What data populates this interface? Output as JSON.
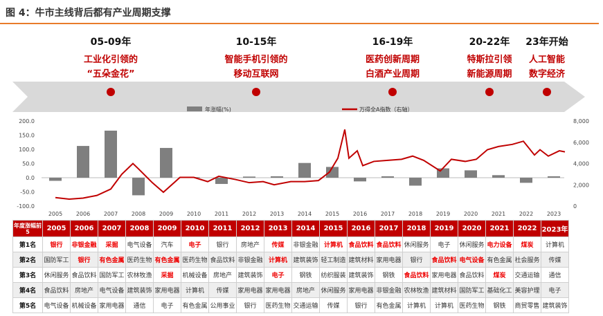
{
  "title": "图 4：牛市主线背后都有产业周期支撑",
  "timeline": [
    {
      "period": "05-09年",
      "desc": [
        "工业化引领的",
        "“五朵金花”"
      ]
    },
    {
      "period": "10-15年",
      "desc": [
        "智能手机引领的",
        "移动互联网"
      ]
    },
    {
      "period": "16-19年",
      "desc": [
        "医药创新周期",
        "白酒产业周期"
      ]
    },
    {
      "period": "20-22年",
      "desc": [
        "特斯拉引领",
        "新能源周期"
      ]
    },
    {
      "period": "23年开始",
      "desc": [
        "人工智能",
        "数字经济"
      ]
    }
  ],
  "colors": {
    "bar": "#7f7f7f",
    "line": "#c00000",
    "header": "#c00000",
    "highlight": "#e00000",
    "arrow": "#d9d9d9"
  },
  "chart_data": {
    "type": "bar+line",
    "legend": [
      "年涨幅(%)",
      "万得全A指数（右轴）"
    ],
    "legend_position": "top",
    "categories": [
      "2005",
      "2006",
      "2007",
      "2008",
      "2009",
      "2010",
      "2011",
      "2012",
      "2013",
      "2014",
      "2015",
      "2016",
      "2017",
      "2018",
      "2019",
      "2020",
      "2021",
      "2022",
      "2023"
    ],
    "series": [
      {
        "name": "年涨幅(%)",
        "type": "bar",
        "axis": "left",
        "values": [
          -11,
          112,
          166,
          -62,
          105,
          2,
          -22,
          4,
          5,
          52,
          38,
          -13,
          5,
          -28,
          33,
          26,
          9,
          -18,
          5
        ]
      },
      {
        "name": "万得全A指数（右轴）",
        "type": "line",
        "axis": "right",
        "x": [
          2005,
          2005.5,
          2006,
          2006.5,
          2007,
          2007.4,
          2007.8,
          2008,
          2008.5,
          2008.9,
          2009.5,
          2010,
          2010.5,
          2010.9,
          2011.5,
          2012,
          2012.5,
          2012.9,
          2013.5,
          2014,
          2014.5,
          2014.9,
          2015.2,
          2015.45,
          2015.6,
          2015.9,
          2016.1,
          2016.5,
          2017,
          2017.5,
          2017.9,
          2018.3,
          2018.9,
          2019.3,
          2019.8,
          2020.2,
          2020.6,
          2021,
          2021.5,
          2021.9,
          2022.3,
          2022.5,
          2022.8,
          2023.2,
          2023.4
        ],
        "values": [
          800,
          650,
          750,
          1000,
          1600,
          3000,
          4000,
          3500,
          2200,
          1300,
          2700,
          2700,
          2300,
          2800,
          2500,
          2200,
          2300,
          2000,
          2300,
          2300,
          2400,
          3200,
          4500,
          7200,
          4500,
          5200,
          3800,
          4200,
          4300,
          4400,
          4700,
          4300,
          3300,
          4400,
          4200,
          4400,
          5300,
          5600,
          5800,
          6100,
          4800,
          5300,
          4700,
          5200,
          5100
        ]
      }
    ],
    "ylim_left": [
      -100,
      200
    ],
    "yticks_left": [
      "200.0",
      "150.0",
      "100.0",
      "50.0",
      "0.0",
      "-50.0",
      "-100.0"
    ],
    "ylim_right": [
      0,
      8000
    ],
    "yticks_right": [
      "8,000",
      "6,000",
      "4,000",
      "2,000",
      "0"
    ],
    "grid": false
  },
  "table": {
    "corner": "年度涨幅前5",
    "years": [
      "2005",
      "2006",
      "2007",
      "2008",
      "2009",
      "2010",
      "2011",
      "2012",
      "2013",
      "2014",
      "2015",
      "2016",
      "2017",
      "2018",
      "2019",
      "2020",
      "2021",
      "2022",
      "2023年"
    ],
    "rows": [
      {
        "rank": "第1名",
        "cells": [
          [
            "银行",
            1
          ],
          [
            "非银金融",
            1
          ],
          [
            "采掘",
            1
          ],
          [
            "电气设备",
            0
          ],
          [
            "汽车",
            0
          ],
          [
            "电子",
            1
          ],
          [
            "银行",
            0
          ],
          [
            "房地产",
            0
          ],
          [
            "传媒",
            1
          ],
          [
            "非银金融",
            0
          ],
          [
            "计算机",
            1
          ],
          [
            "食品饮料",
            1
          ],
          [
            "食品饮料",
            1
          ],
          [
            "休闲服务",
            0
          ],
          [
            "电子",
            0
          ],
          [
            "休闲服务",
            0
          ],
          [
            "电力设备",
            1
          ],
          [
            "煤炭",
            1
          ],
          [
            "计算机",
            0
          ]
        ]
      },
      {
        "rank": "第2名",
        "cells": [
          [
            "国防军工",
            0
          ],
          [
            "银行",
            1
          ],
          [
            "有色金属",
            1
          ],
          [
            "医药生物",
            0
          ],
          [
            "有色金属",
            1
          ],
          [
            "医药生物",
            0
          ],
          [
            "食品饮料",
            0
          ],
          [
            "非银金融",
            0
          ],
          [
            "计算机",
            1
          ],
          [
            "建筑装饰",
            0
          ],
          [
            "轻工制造",
            0
          ],
          [
            "建筑材料",
            0
          ],
          [
            "家用电器",
            0
          ],
          [
            "银行",
            0
          ],
          [
            "食品饮料",
            1
          ],
          [
            "电气设备",
            1
          ],
          [
            "有色金属",
            0
          ],
          [
            "社会服务",
            0
          ],
          [
            "传媒",
            0
          ]
        ]
      },
      {
        "rank": "第3名",
        "cells": [
          [
            "休闲服务",
            0
          ],
          [
            "食品饮料",
            0
          ],
          [
            "国防军工",
            0
          ],
          [
            "农林牧渔",
            0
          ],
          [
            "采掘",
            1
          ],
          [
            "机械设备",
            0
          ],
          [
            "房地产",
            0
          ],
          [
            "建筑装饰",
            0
          ],
          [
            "电子",
            1
          ],
          [
            "钢铁",
            0
          ],
          [
            "纺织服装",
            0
          ],
          [
            "建筑装饰",
            0
          ],
          [
            "钢铁",
            0
          ],
          [
            "食品饮料",
            1
          ],
          [
            "家用电器",
            0
          ],
          [
            "食品饮料",
            0
          ],
          [
            "煤炭",
            1
          ],
          [
            "交通运输",
            0
          ],
          [
            "通信",
            0
          ]
        ]
      },
      {
        "rank": "第4名",
        "cells": [
          [
            "食品饮料",
            0
          ],
          [
            "房地产",
            0
          ],
          [
            "电气设备",
            0
          ],
          [
            "建筑装饰",
            0
          ],
          [
            "家用电器",
            0
          ],
          [
            "计算机",
            0
          ],
          [
            "传媒",
            0
          ],
          [
            "家用电器",
            0
          ],
          [
            "家用电器",
            0
          ],
          [
            "房地产",
            0
          ],
          [
            "休闲服务",
            0
          ],
          [
            "家用电器",
            0
          ],
          [
            "非银金融",
            0
          ],
          [
            "农林牧渔",
            0
          ],
          [
            "建筑材料",
            0
          ],
          [
            "国防军工",
            0
          ],
          [
            "基础化工",
            0
          ],
          [
            "美容护理",
            0
          ],
          [
            "电子",
            0
          ]
        ]
      },
      {
        "rank": "第5名",
        "cells": [
          [
            "电气设备",
            0
          ],
          [
            "机械设备",
            0
          ],
          [
            "家用电器",
            0
          ],
          [
            "通信",
            0
          ],
          [
            "电子",
            0
          ],
          [
            "有色金属",
            0
          ],
          [
            "公用事业",
            0
          ],
          [
            "银行",
            0
          ],
          [
            "医药生物",
            0
          ],
          [
            "交通运输",
            0
          ],
          [
            "传媒",
            0
          ],
          [
            "银行",
            0
          ],
          [
            "有色金属",
            0
          ],
          [
            "计算机",
            0
          ],
          [
            "计算机",
            0
          ],
          [
            "医药生物",
            0
          ],
          [
            "钢铁",
            0
          ],
          [
            "商贸零售",
            0
          ],
          [
            "建筑装饰",
            0
          ]
        ]
      }
    ]
  }
}
